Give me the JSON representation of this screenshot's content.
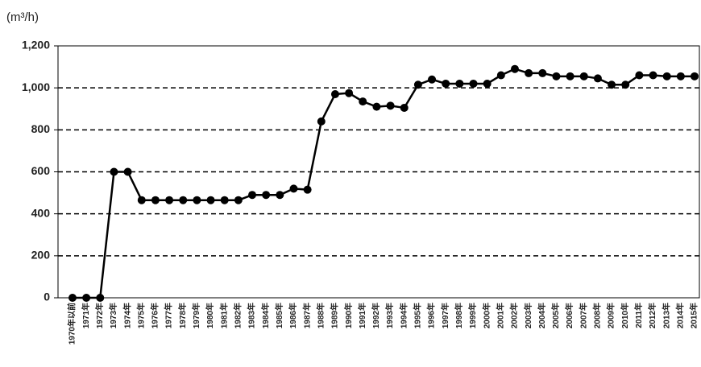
{
  "chart_data": {
    "type": "line",
    "y_axis_label": "(m³/h)",
    "categories": [
      "1970年以前",
      "1971年",
      "1972年",
      "1973年",
      "1974年",
      "1975年",
      "1976年",
      "1977年",
      "1978年",
      "1979年",
      "1980年",
      "1981年",
      "1982年",
      "1983年",
      "1984年",
      "1985年",
      "1986年",
      "1987年",
      "1988年",
      "1989年",
      "1990年",
      "1991年",
      "1992年",
      "1993年",
      "1994年",
      "1995年",
      "1996年",
      "1997年",
      "1998年",
      "1999年",
      "2000年",
      "2001年",
      "2002年",
      "2003年",
      "2004年",
      "2005年",
      "2006年",
      "2007年",
      "2008年",
      "2009年",
      "2010年",
      "2011年",
      "2012年",
      "2013年",
      "2014年",
      "2015年"
    ],
    "values": [
      0,
      0,
      0,
      600,
      600,
      465,
      465,
      465,
      465,
      465,
      465,
      465,
      465,
      490,
      490,
      490,
      520,
      515,
      840,
      970,
      975,
      935,
      910,
      915,
      905,
      1015,
      1040,
      1020,
      1020,
      1020,
      1020,
      1060,
      1090,
      1070,
      1070,
      1055,
      1055,
      1055,
      1045,
      1015,
      1015,
      1060,
      1060,
      1055,
      1055,
      1055
    ],
    "color": "#000000",
    "ylim": [
      0,
      1200
    ],
    "yticks": [
      0,
      200,
      400,
      600,
      800,
      {
        "value": 1000,
        "label": "1,000"
      },
      {
        "value": 1200,
        "label": "1,200"
      }
    ],
    "grid": true
  }
}
